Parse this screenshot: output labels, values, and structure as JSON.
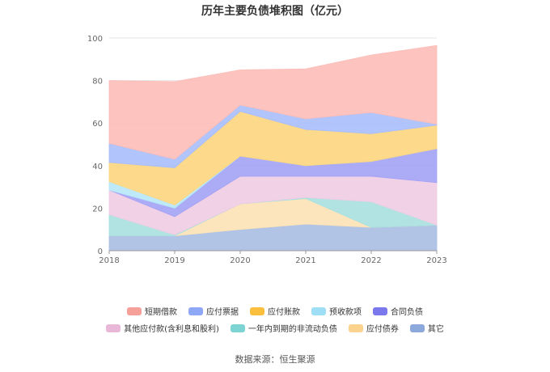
{
  "chart_data": {
    "type": "area",
    "stacked": true,
    "title": "历年主要负债堆积图（亿元）",
    "x": [
      "2018",
      "2019",
      "2020",
      "2021",
      "2022",
      "2023"
    ],
    "ylim": [
      0,
      100
    ],
    "yticks": [
      "0",
      "20",
      "40",
      "60",
      "80",
      "100"
    ],
    "grid": true,
    "legend_position": "bottom",
    "series": [
      {
        "name": "其它",
        "color": "#A9BEE3",
        "values": [
          7,
          7,
          10,
          12.5,
          11,
          12
        ]
      },
      {
        "name": "应付债券",
        "color": "#FCE2B6",
        "values": [
          0,
          0,
          12,
          12,
          0,
          0
        ]
      },
      {
        "name": "一年内到期的非流动负债",
        "color": "#A8E0E0",
        "values": [
          10,
          0.5,
          0,
          0.5,
          12,
          0
        ]
      },
      {
        "name": "其他应付款(含利息和股利)",
        "color": "#EFCCE3",
        "values": [
          11.5,
          8.5,
          13,
          10,
          12,
          20
        ]
      },
      {
        "name": "合同负债",
        "color": "#A3A2F5",
        "values": [
          0,
          4,
          9.5,
          5,
          7,
          16
        ]
      },
      {
        "name": "预收款项",
        "color": "#B6E7F7",
        "values": [
          4,
          1.5,
          0,
          0,
          0,
          0
        ]
      },
      {
        "name": "应付账款",
        "color": "#FDD57E",
        "values": [
          9,
          17.5,
          21,
          17,
          13,
          11
        ]
      },
      {
        "name": "应付票据",
        "color": "#A9BEFB",
        "values": [
          9,
          4,
          3,
          5,
          10,
          0.5
        ]
      },
      {
        "name": "短期借款",
        "color": "#FCBDB8",
        "values": [
          29.5,
          36.5,
          16.5,
          23.5,
          27,
          37
        ]
      }
    ]
  },
  "legend": {
    "rows": [
      [
        {
          "label": "短期借款",
          "color": "#F5A099"
        },
        {
          "label": "应付票据",
          "color": "#8FA7F7"
        },
        {
          "label": "应付账款",
          "color": "#FBBF3E"
        },
        {
          "label": "预收款项",
          "color": "#9FDFF5"
        },
        {
          "label": "合同负债",
          "color": "#7B78EC"
        }
      ],
      [
        {
          "label": "其他应付款(含利息和股利)",
          "color": "#E9B8D8"
        },
        {
          "label": "一年内到期的非流动负债",
          "color": "#7ED3D3"
        },
        {
          "label": "应付债券",
          "color": "#FBD38F"
        },
        {
          "label": "其它",
          "color": "#8DA9DB"
        }
      ]
    ]
  },
  "source": "数据来源：恒生聚源"
}
